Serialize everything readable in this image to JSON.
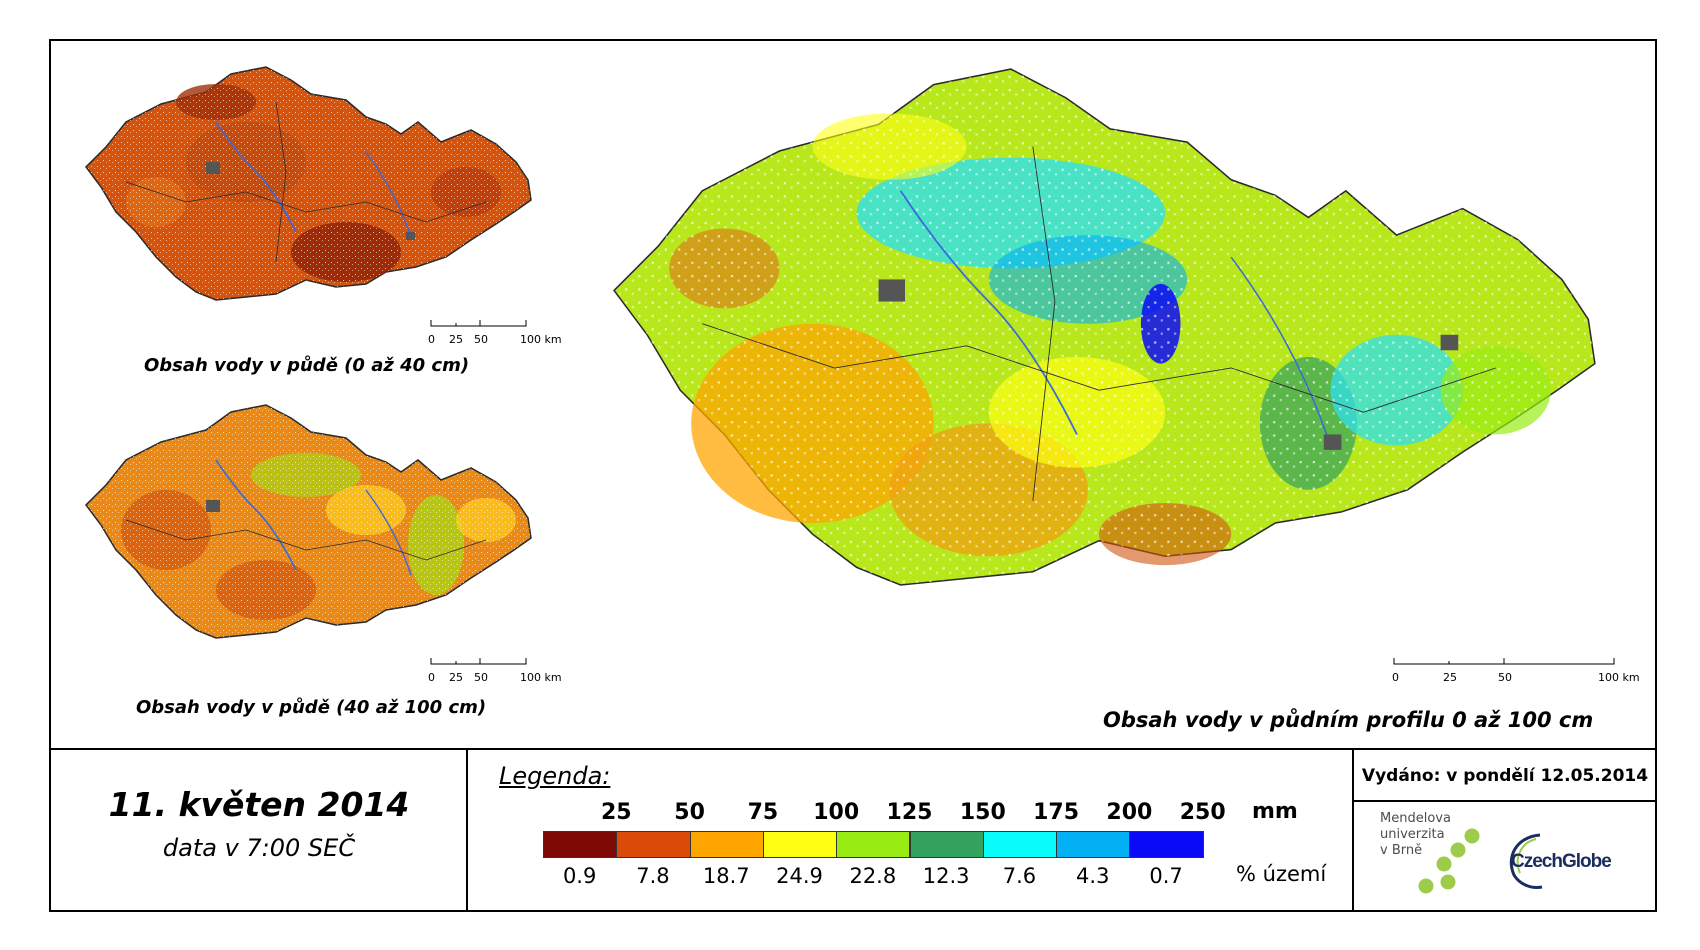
{
  "maps": {
    "top_left_caption": "Obsah vody v půdě (0 až 40 cm)",
    "bottom_left_caption": "Obsah vody v půdě (40 až 100 cm)",
    "main_caption": "Obsah vody v půdním profilu 0 až 100 cm",
    "scale_labels": [
      "0",
      "25",
      "50",
      "100 km"
    ]
  },
  "date": {
    "title": "11. květen 2014",
    "subtitle": "data v 7:00 SEČ"
  },
  "legend": {
    "title": "Legenda:",
    "thresholds": [
      "25",
      "50",
      "75",
      "100",
      "125",
      "150",
      "175",
      "200",
      "250"
    ],
    "unit": "mm",
    "classes": [
      {
        "color": "#7f0a05",
        "percent": "0.9"
      },
      {
        "color": "#dc4a0a",
        "percent": "7.8"
      },
      {
        "color": "#ffa500",
        "percent": "18.7"
      },
      {
        "color": "#ffff14",
        "percent": "24.9"
      },
      {
        "color": "#98ec14",
        "percent": "22.8"
      },
      {
        "color": "#33a25e",
        "percent": "12.3"
      },
      {
        "color": "#08fcf9",
        "percent": "7.6"
      },
      {
        "color": "#03b0f3",
        "percent": "4.3"
      },
      {
        "color": "#0a0af7",
        "percent": "0.7"
      }
    ],
    "percent_unit": "% území"
  },
  "issued": "Vydáno: v pondělí 12.05.2014",
  "logos": {
    "mendel_lines": [
      "Mendelova",
      "univerzita",
      "v Brně"
    ],
    "czechglobe": "CzechGlobe"
  },
  "colors": {
    "frame": "#000000",
    "map_dry": "#d2540e",
    "map_very_dry": "#a0300a",
    "map_mid": "#ffd21e",
    "map_green": "#98ec14",
    "map_cyan": "#2ee0f0",
    "rivers": "#3a6ad8",
    "urban": "#555555"
  }
}
